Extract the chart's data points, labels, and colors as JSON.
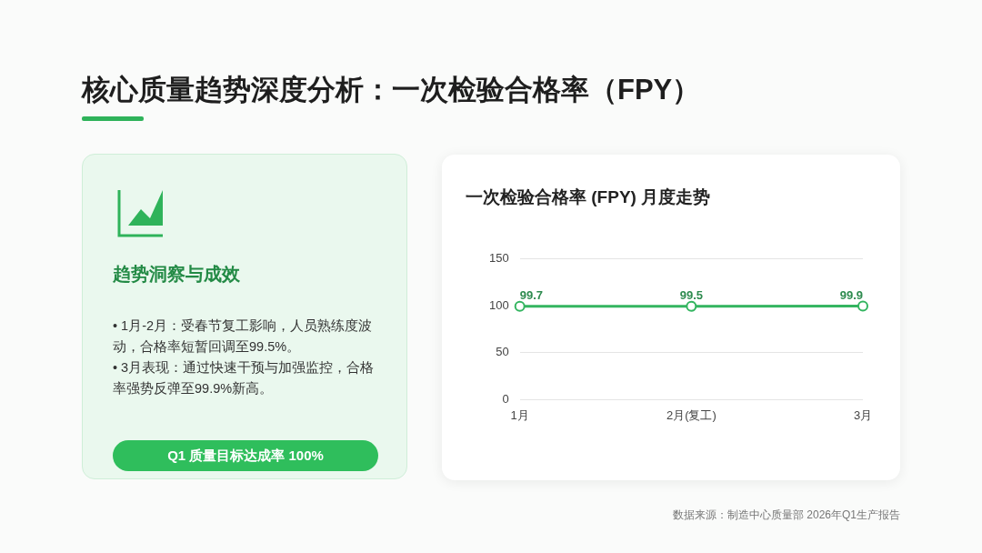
{
  "chart_data": [
    {
      "type": "line",
      "title": "核心质量趋势深度分析：一次检验合格率（FPY）",
      "subtitle": "一次检验合格率 (FPY) 月度走势",
      "categories": [
        "1月",
        "2月(复工)",
        "3月"
      ],
      "series": [
        {
          "color": "#34b560",
          "values": [
            99.7,
            99.5,
            99.9
          ]
        }
      ],
      "ylim": [
        0,
        150
      ],
      "yticks": [
        0,
        50,
        100,
        150
      ],
      "grid": "y",
      "legend": false,
      "marker": "circle",
      "line_style": "solid",
      "data_labels": true,
      "annotations": [
        "数据来源：制造中心质量部 2026年Q1生产报告"
      ]
    },
    {
      "type": "other",
      "title": "趋势洞察与成效",
      "annotations": [
        "• 1月-2月：受春节复工影响，人员熟练度波动，合格率短暂回调至99.5%。",
        "• 3月表现：通过快速干预与加强监控，合格率强势反弹至99.9%新高。",
        "Q1 质量目标达成率 100%"
      ]
    }
  ]
}
